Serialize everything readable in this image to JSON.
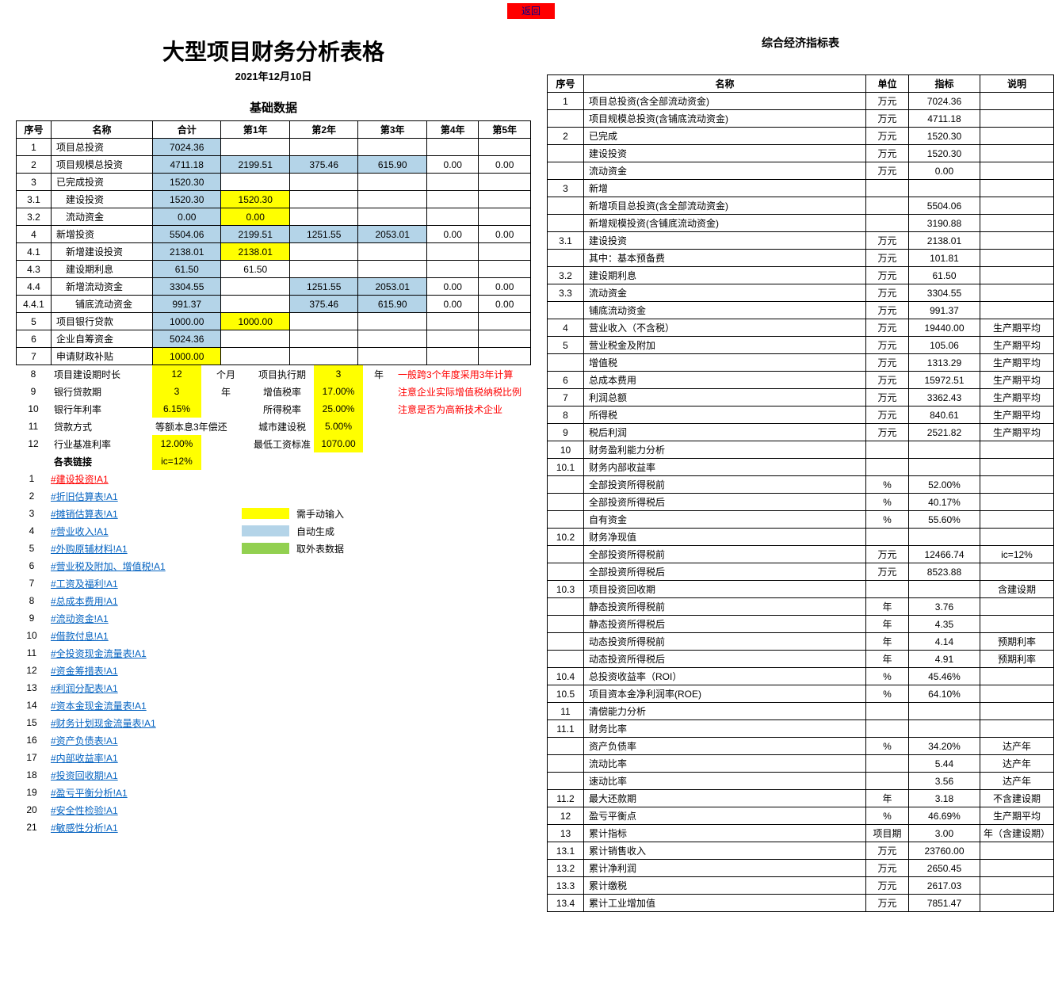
{
  "return_btn": "返回",
  "left": {
    "title": "大型项目财务分析表格",
    "date": "2021年12月10日",
    "section": "基础数据",
    "headers": [
      "序号",
      "名称",
      "合计",
      "第1年",
      "第2年",
      "第3年",
      "第4年",
      "第5年"
    ],
    "rows": [
      {
        "no": "1",
        "name": "项目总投资",
        "nameCls": "name",
        "cells": [
          {
            "v": "7024.36",
            "c": "bg-b"
          },
          {
            "v": ""
          },
          {
            "v": ""
          },
          {
            "v": ""
          },
          {
            "v": ""
          },
          {
            "v": ""
          }
        ]
      },
      {
        "no": "2",
        "name": "项目规模总投资",
        "nameCls": "name",
        "cells": [
          {
            "v": "4711.18",
            "c": "bg-b"
          },
          {
            "v": "2199.51",
            "c": "bg-b"
          },
          {
            "v": "375.46",
            "c": "bg-b"
          },
          {
            "v": "615.90",
            "c": "bg-b"
          },
          {
            "v": "0.00"
          },
          {
            "v": "0.00"
          }
        ]
      },
      {
        "no": "3",
        "name": "已完成投资",
        "nameCls": "name",
        "cells": [
          {
            "v": "1520.30",
            "c": "bg-b"
          },
          {
            "v": ""
          },
          {
            "v": ""
          },
          {
            "v": ""
          },
          {
            "v": ""
          },
          {
            "v": ""
          }
        ]
      },
      {
        "no": "3.1",
        "name": "建设投资",
        "nameCls": "name ind1",
        "cells": [
          {
            "v": "1520.30",
            "c": "bg-b"
          },
          {
            "v": "1520.30",
            "c": "bg-y"
          },
          {
            "v": ""
          },
          {
            "v": ""
          },
          {
            "v": ""
          },
          {
            "v": ""
          }
        ]
      },
      {
        "no": "3.2",
        "name": "流动资金",
        "nameCls": "name ind1",
        "cells": [
          {
            "v": "0.00",
            "c": "bg-b"
          },
          {
            "v": "0.00",
            "c": "bg-y"
          },
          {
            "v": ""
          },
          {
            "v": ""
          },
          {
            "v": ""
          },
          {
            "v": ""
          }
        ]
      },
      {
        "no": "4",
        "name": "新增投资",
        "nameCls": "name",
        "cells": [
          {
            "v": "5504.06",
            "c": "bg-b"
          },
          {
            "v": "2199.51",
            "c": "bg-b"
          },
          {
            "v": "1251.55",
            "c": "bg-b"
          },
          {
            "v": "2053.01",
            "c": "bg-b"
          },
          {
            "v": "0.00"
          },
          {
            "v": "0.00"
          }
        ]
      },
      {
        "no": "4.1",
        "name": "新增建设投资",
        "nameCls": "name ind1",
        "cells": [
          {
            "v": "2138.01",
            "c": "bg-b"
          },
          {
            "v": "2138.01",
            "c": "bg-y"
          },
          {
            "v": ""
          },
          {
            "v": ""
          },
          {
            "v": ""
          },
          {
            "v": ""
          }
        ]
      },
      {
        "no": "4.3",
        "name": "建设期利息",
        "nameCls": "name ind1",
        "cells": [
          {
            "v": "61.50",
            "c": "bg-b"
          },
          {
            "v": "61.50"
          },
          {
            "v": ""
          },
          {
            "v": ""
          },
          {
            "v": ""
          },
          {
            "v": ""
          }
        ]
      },
      {
        "no": "4.4",
        "name": "新增流动资金",
        "nameCls": "name ind1",
        "cells": [
          {
            "v": "3304.55",
            "c": "bg-b"
          },
          {
            "v": ""
          },
          {
            "v": "1251.55",
            "c": "bg-b"
          },
          {
            "v": "2053.01",
            "c": "bg-b"
          },
          {
            "v": "0.00"
          },
          {
            "v": "0.00"
          }
        ]
      },
      {
        "no": "4.4.1",
        "name": "铺底流动资金",
        "nameCls": "name ind2",
        "cells": [
          {
            "v": "991.37",
            "c": "bg-b"
          },
          {
            "v": ""
          },
          {
            "v": "375.46",
            "c": "bg-b"
          },
          {
            "v": "615.90",
            "c": "bg-b"
          },
          {
            "v": "0.00"
          },
          {
            "v": "0.00"
          }
        ]
      },
      {
        "no": "5",
        "name": "项目银行贷款",
        "nameCls": "name",
        "cells": [
          {
            "v": "1000.00",
            "c": "bg-b"
          },
          {
            "v": "1000.00",
            "c": "bg-y"
          },
          {
            "v": ""
          },
          {
            "v": ""
          },
          {
            "v": ""
          },
          {
            "v": ""
          }
        ]
      },
      {
        "no": "6",
        "name": "企业自筹资金",
        "nameCls": "name",
        "cells": [
          {
            "v": "5024.36",
            "c": "bg-b"
          },
          {
            "v": ""
          },
          {
            "v": ""
          },
          {
            "v": ""
          },
          {
            "v": ""
          },
          {
            "v": ""
          }
        ]
      },
      {
        "no": "7",
        "name": "申请财政补贴",
        "nameCls": "name",
        "cells": [
          {
            "v": "1000.00",
            "c": "bg-y"
          },
          {
            "v": ""
          },
          {
            "v": ""
          },
          {
            "v": ""
          },
          {
            "v": ""
          },
          {
            "v": ""
          }
        ]
      }
    ],
    "extra": {
      "r8": {
        "no": "8",
        "name": "项目建设期时长",
        "v1": "12",
        "u1": "个月",
        "lbl": "项目执行期",
        "v2": "3",
        "u2": "年",
        "note": "一般跨3个年度采用3年计算"
      },
      "r9": {
        "no": "9",
        "name": "银行贷款期",
        "v1": "3",
        "u1": "年",
        "lbl": "增值税率",
        "v2": "17.00%",
        "note": "注意企业实际增值税纳税比例"
      },
      "r10": {
        "no": "10",
        "name": "银行年利率",
        "v1": "6.15%",
        "lbl": "所得税率",
        "v2": "25.00%",
        "note": "注意是否为高新技术企业"
      },
      "r11": {
        "no": "11",
        "name": "贷款方式",
        "v1": "等额本息3年偿还",
        "lbl": "城市建设税",
        "v2": "5.00%"
      },
      "r12": {
        "no": "12",
        "name": "行业基准利率",
        "v1": "12.00%",
        "lbl": "最低工资标准",
        "v2": "1070.00"
      },
      "ic": {
        "name": "各表链接",
        "v": "ic=12%"
      }
    },
    "links": [
      {
        "no": "1",
        "t": "#建设投资!A1",
        "red": true
      },
      {
        "no": "2",
        "t": "#折旧估算表!A1"
      },
      {
        "no": "3",
        "t": "#摊销估算表!A1"
      },
      {
        "no": "4",
        "t": "#营业收入!A1"
      },
      {
        "no": "5",
        "t": "#外购原辅材料!A1"
      },
      {
        "no": "6",
        "t": "#营业税及附加、增值税!A1"
      },
      {
        "no": "7",
        "t": "#工资及福利!A1"
      },
      {
        "no": "8",
        "t": "#总成本费用!A1"
      },
      {
        "no": "9",
        "t": "#流动资金!A1"
      },
      {
        "no": "10",
        "t": "#借款付息!A1"
      },
      {
        "no": "11",
        "t": "#全投资现金流量表!A1"
      },
      {
        "no": "12",
        "t": "#资金筹措表!A1"
      },
      {
        "no": "13",
        "t": "#利润分配表!A1"
      },
      {
        "no": "14",
        "t": "#资本金现金流量表!A1"
      },
      {
        "no": "15",
        "t": "#财务计划现金流量表!A1"
      },
      {
        "no": "16",
        "t": "#资产负债表!A1"
      },
      {
        "no": "17",
        "t": "#内部收益率!A1"
      },
      {
        "no": "18",
        "t": "#投资回收期!A1"
      },
      {
        "no": "19",
        "t": "#盈亏平衡分析!A1"
      },
      {
        "no": "20",
        "t": "#安全性检验!A1"
      },
      {
        "no": "21",
        "t": "#敏感性分析!A1"
      }
    ],
    "legend": [
      {
        "c": "bg-y",
        "t": "需手动输入"
      },
      {
        "c": "bg-b",
        "t": "自动生成"
      },
      {
        "c": "bg-g",
        "t": "取外表数据"
      }
    ]
  },
  "right": {
    "title": "综合经济指标表",
    "headers": [
      "序号",
      "名称",
      "单位",
      "指标",
      "说明"
    ],
    "rows": [
      [
        "1",
        "项目总投资(含全部流动资金)",
        "万元",
        "7024.36",
        ""
      ],
      [
        "",
        "项目规模总投资(含铺底流动资金)",
        "万元",
        "4711.18",
        ""
      ],
      [
        "2",
        "已完成",
        "万元",
        "1520.30",
        ""
      ],
      [
        "",
        "建设投资",
        "万元",
        "1520.30",
        ""
      ],
      [
        "",
        "流动资金",
        "万元",
        "0.00",
        ""
      ],
      [
        "3",
        "新增",
        "",
        "",
        ""
      ],
      [
        "",
        "新增项目总投资(含全部流动资金)",
        "",
        "5504.06",
        ""
      ],
      [
        "",
        "新增规模投资(含铺底流动资金)",
        "",
        "3190.88",
        ""
      ],
      [
        "3.1",
        "建设投资",
        "万元",
        "2138.01",
        ""
      ],
      [
        "",
        "  其中：基本预备费",
        "万元",
        "101.81",
        ""
      ],
      [
        "3.2",
        "建设期利息",
        "万元",
        "61.50",
        ""
      ],
      [
        "3.3",
        "流动资金",
        "万元",
        "3304.55",
        ""
      ],
      [
        "",
        "铺底流动资金",
        "万元",
        "991.37",
        ""
      ],
      [
        "4",
        "营业收入（不含税）",
        "万元",
        "19440.00",
        "生产期平均"
      ],
      [
        "5",
        "营业税金及附加",
        "万元",
        "105.06",
        "生产期平均"
      ],
      [
        "",
        "增值税",
        "万元",
        "1313.29",
        "生产期平均"
      ],
      [
        "6",
        "总成本费用",
        "万元",
        "15972.51",
        "生产期平均"
      ],
      [
        "7",
        "利润总额",
        "万元",
        "3362.43",
        "生产期平均"
      ],
      [
        "8",
        "所得税",
        "万元",
        "840.61",
        "生产期平均"
      ],
      [
        "9",
        "税后利润",
        "万元",
        "2521.82",
        "生产期平均"
      ],
      [
        "10",
        "财务盈利能力分析",
        "",
        "",
        ""
      ],
      [
        "10.1",
        "财务内部收益率",
        "",
        "",
        ""
      ],
      [
        "",
        "全部投资所得税前",
        "%",
        "52.00%",
        ""
      ],
      [
        "",
        "全部投资所得税后",
        "%",
        "40.17%",
        ""
      ],
      [
        "",
        "自有资金",
        "%",
        "55.60%",
        ""
      ],
      [
        "10.2",
        "财务净现值",
        "",
        "",
        ""
      ],
      [
        "",
        "全部投资所得税前",
        "万元",
        "12466.74",
        "ic=12%"
      ],
      [
        "",
        "全部投资所得税后",
        "万元",
        "8523.88",
        ""
      ],
      [
        "10.3",
        "项目投资回收期",
        "",
        "",
        "含建设期"
      ],
      [
        "",
        "静态投资所得税前",
        "年",
        "3.76",
        ""
      ],
      [
        "",
        "静态投资所得税后",
        "年",
        "4.35",
        ""
      ],
      [
        "",
        "动态投资所得税前",
        "年",
        "4.14",
        "预期利率"
      ],
      [
        "",
        "动态投资所得税后",
        "年",
        "4.91",
        "预期利率"
      ],
      [
        "10.4",
        "总投资收益率（ROI）",
        "%",
        "45.46%",
        ""
      ],
      [
        "10.5",
        "项目资本金净利润率(ROE)",
        "%",
        "64.10%",
        ""
      ],
      [
        "11",
        "清偿能力分析",
        "",
        "",
        ""
      ],
      [
        "11.1",
        "财务比率",
        "",
        "",
        ""
      ],
      [
        "",
        "资产负债率",
        "%",
        "34.20%",
        "达产年"
      ],
      [
        "",
        "流动比率",
        "",
        "5.44",
        "达产年"
      ],
      [
        "",
        "速动比率",
        "",
        "3.56",
        "达产年"
      ],
      [
        "11.2",
        "最大还款期",
        "年",
        "3.18",
        "不含建设期"
      ],
      [
        "12",
        "盈亏平衡点",
        "%",
        "46.69%",
        "生产期平均"
      ],
      [
        "13",
        "累计指标",
        "项目期",
        "3.00",
        "年（含建设期）"
      ],
      [
        "13.1",
        "累计销售收入",
        "万元",
        "23760.00",
        ""
      ],
      [
        "13.2",
        "累计净利润",
        "万元",
        "2650.45",
        ""
      ],
      [
        "13.3",
        "累计缴税",
        "万元",
        "2617.03",
        ""
      ],
      [
        "13.4",
        "累计工业增加值",
        "万元",
        "7851.47",
        ""
      ]
    ]
  }
}
